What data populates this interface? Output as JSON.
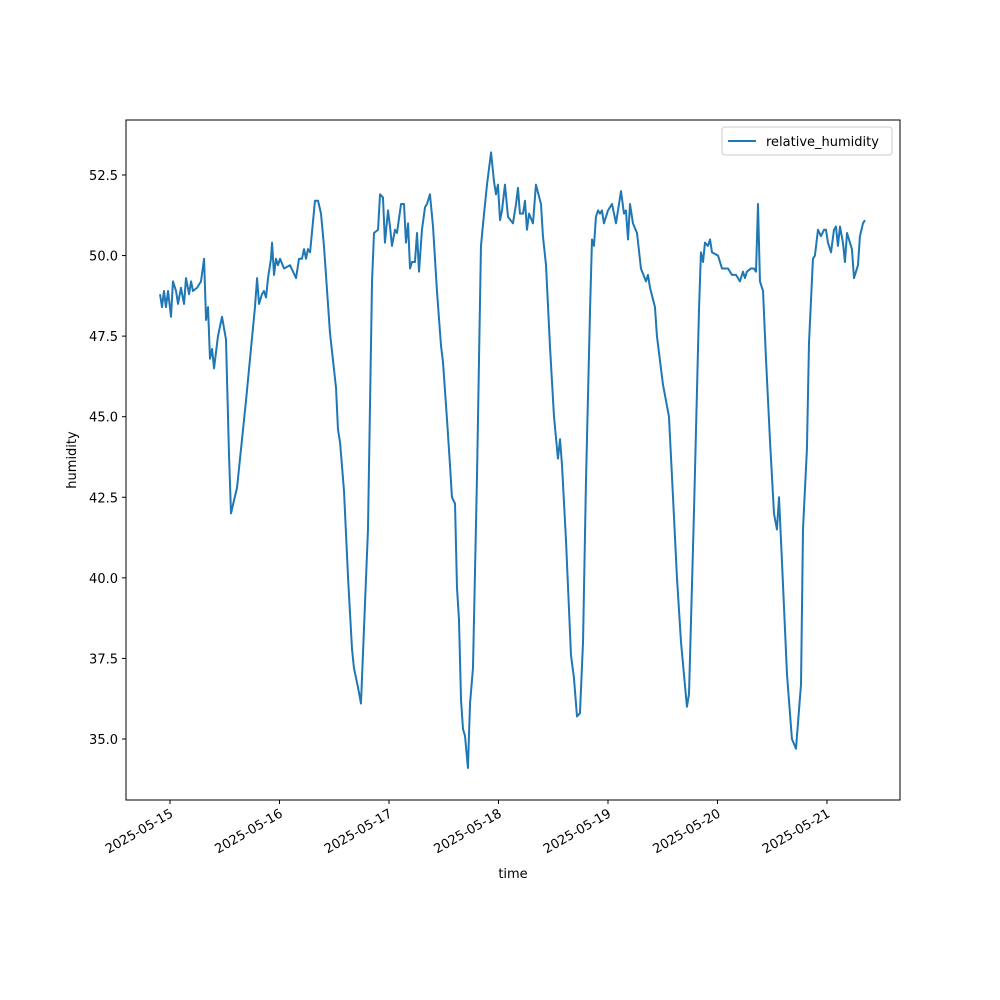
{
  "chart_data": {
    "type": "line",
    "x_label": "time",
    "y_label": "humidity",
    "x": [
      -0.091,
      -0.073,
      -0.055,
      -0.037,
      -0.018,
      0.009,
      0.027,
      0.055,
      0.073,
      0.1,
      0.128,
      0.146,
      0.174,
      0.192,
      0.21,
      0.247,
      0.283,
      0.311,
      0.329,
      0.347,
      0.365,
      0.384,
      0.402,
      0.438,
      0.475,
      0.511,
      0.539,
      0.557,
      0.612,
      0.694,
      0.776,
      0.795,
      0.813,
      0.84,
      0.858,
      0.877,
      0.895,
      0.922,
      0.932,
      0.95,
      0.968,
      0.986,
      1.005,
      1.041,
      1.096,
      1.151,
      1.178,
      1.205,
      1.224,
      1.242,
      1.26,
      1.279,
      1.324,
      1.352,
      1.379,
      1.406,
      1.461,
      1.516,
      1.534,
      1.553,
      1.589,
      1.626,
      1.662,
      1.68,
      1.717,
      1.744,
      1.808,
      1.845,
      1.863,
      1.9,
      1.918,
      1.945,
      1.963,
      1.991,
      2.009,
      2.027,
      2.055,
      2.073,
      2.11,
      2.137,
      2.155,
      2.174,
      2.192,
      2.21,
      2.237,
      2.256,
      2.274,
      2.301,
      2.329,
      2.347,
      2.374,
      2.402,
      2.438,
      2.475,
      2.493,
      2.53,
      2.557,
      2.575,
      2.603,
      2.621,
      2.639,
      2.658,
      2.676,
      2.694,
      2.721,
      2.74,
      2.767,
      2.804,
      2.84,
      2.868,
      2.895,
      2.932,
      2.959,
      2.977,
      2.995,
      3.014,
      3.032,
      3.059,
      3.087,
      3.132,
      3.16,
      3.178,
      3.196,
      3.224,
      3.242,
      3.26,
      3.279,
      3.315,
      3.342,
      3.388,
      3.406,
      3.434,
      3.47,
      3.507,
      3.543,
      3.562,
      3.58,
      3.616,
      3.662,
      3.689,
      3.717,
      3.744,
      3.772,
      3.799,
      3.836,
      3.854,
      3.872,
      3.89,
      3.909,
      3.927,
      3.945,
      3.963,
      4.0,
      4.037,
      4.073,
      4.119,
      4.146,
      4.164,
      4.183,
      4.201,
      4.228,
      4.265,
      4.301,
      4.347,
      4.365,
      4.384,
      4.429,
      4.447,
      4.502,
      4.557,
      4.594,
      4.63,
      4.667,
      4.694,
      4.721,
      4.74,
      4.785,
      4.831,
      4.849,
      4.868,
      4.886,
      4.913,
      4.932,
      4.95,
      5.005,
      5.041,
      5.096,
      5.132,
      5.169,
      5.205,
      5.233,
      5.251,
      5.269,
      5.306,
      5.333,
      5.352,
      5.37,
      5.388,
      5.416,
      5.443,
      5.479,
      5.516,
      5.543,
      5.562,
      5.589,
      5.635,
      5.68,
      5.717,
      5.763,
      5.781,
      5.817,
      5.836,
      5.872,
      5.89,
      5.918,
      5.945,
      5.973,
      5.991,
      6.009,
      6.037,
      6.064,
      6.082,
      6.1,
      6.119,
      6.146,
      6.164,
      6.183,
      6.21,
      6.228,
      6.247,
      6.283,
      6.301,
      6.329,
      6.347
    ],
    "series": [
      {
        "name": "relative_humidity",
        "color": "#1f77b4",
        "values": [
          48.8,
          48.4,
          48.9,
          48.4,
          48.9,
          48.1,
          49.2,
          48.9,
          48.5,
          49.0,
          48.5,
          49.3,
          48.8,
          49.2,
          48.9,
          49.0,
          49.2,
          49.9,
          48.0,
          48.4,
          46.8,
          47.1,
          46.5,
          47.5,
          48.1,
          47.4,
          43.8,
          42.0,
          42.8,
          45.5,
          48.4,
          49.3,
          48.5,
          48.8,
          48.9,
          48.7,
          49.3,
          49.9,
          50.4,
          49.4,
          49.9,
          49.7,
          49.9,
          49.6,
          49.7,
          49.3,
          49.9,
          49.9,
          50.2,
          49.9,
          50.2,
          50.1,
          51.7,
          51.7,
          51.3,
          50.3,
          47.6,
          45.9,
          44.6,
          44.2,
          42.7,
          40.0,
          37.8,
          37.2,
          36.6,
          36.1,
          41.5,
          49.2,
          50.7,
          50.8,
          51.9,
          51.8,
          50.4,
          51.4,
          50.9,
          50.3,
          50.8,
          50.7,
          51.6,
          51.6,
          50.4,
          51.0,
          49.6,
          49.8,
          49.8,
          50.7,
          49.5,
          50.8,
          51.5,
          51.6,
          51.9,
          50.9,
          48.9,
          47.2,
          46.7,
          44.9,
          43.5,
          42.5,
          42.3,
          39.7,
          38.7,
          36.2,
          35.3,
          35.1,
          34.1,
          36.1,
          37.2,
          43.2,
          50.3,
          51.3,
          52.2,
          53.2,
          52.3,
          51.9,
          52.2,
          51.1,
          51.4,
          52.2,
          51.2,
          51.0,
          51.6,
          52.1,
          51.3,
          51.3,
          51.7,
          50.8,
          51.3,
          51.0,
          52.2,
          51.6,
          50.6,
          49.7,
          47.2,
          45.0,
          43.7,
          44.3,
          43.5,
          41.2,
          37.6,
          36.9,
          35.7,
          35.8,
          38.0,
          43.0,
          48.3,
          50.5,
          50.3,
          51.2,
          51.4,
          51.3,
          51.4,
          51.0,
          51.4,
          51.6,
          51.0,
          52.0,
          51.3,
          51.4,
          50.5,
          51.6,
          51.0,
          50.7,
          49.6,
          49.2,
          49.4,
          49.0,
          48.4,
          47.5,
          46.0,
          45.0,
          42.5,
          40.0,
          38.0,
          37.0,
          36.0,
          36.4,
          42.0,
          48.3,
          50.1,
          49.8,
          50.4,
          50.3,
          50.5,
          50.1,
          50.0,
          49.6,
          49.6,
          49.4,
          49.4,
          49.2,
          49.5,
          49.3,
          49.5,
          49.6,
          49.6,
          49.5,
          51.6,
          49.2,
          48.9,
          46.8,
          44.3,
          42.0,
          41.5,
          42.5,
          40.5,
          37.0,
          35.0,
          34.7,
          36.7,
          41.5,
          44.0,
          47.3,
          49.9,
          50.0,
          50.8,
          50.6,
          50.8,
          50.8,
          50.4,
          50.1,
          50.8,
          50.9,
          50.3,
          50.9,
          50.4,
          49.8,
          50.7,
          50.4,
          50.2,
          49.3,
          49.7,
          50.6,
          51.0,
          51.1
        ]
      }
    ],
    "xlim": [
      -0.402,
      6.667
    ],
    "xticks": [
      {
        "value": 0,
        "label": "2025-05-15"
      },
      {
        "value": 1,
        "label": "2025-05-16"
      },
      {
        "value": 2,
        "label": "2025-05-17"
      },
      {
        "value": 3,
        "label": "2025-05-18"
      },
      {
        "value": 4,
        "label": "2025-05-19"
      },
      {
        "value": 5,
        "label": "2025-05-20"
      },
      {
        "value": 6,
        "label": "2025-05-21"
      }
    ],
    "ylim": [
      33.107,
      54.206
    ],
    "yticks": [
      {
        "value": 35,
        "label": "35.0"
      },
      {
        "value": 37.5,
        "label": "37.5"
      },
      {
        "value": 40,
        "label": "40.0"
      },
      {
        "value": 42.5,
        "label": "42.5"
      },
      {
        "value": 45,
        "label": "45.0"
      },
      {
        "value": 47.5,
        "label": "47.5"
      },
      {
        "value": 50,
        "label": "50.0"
      },
      {
        "value": 52.5,
        "label": "52.5"
      }
    ],
    "legend": "upper right"
  }
}
